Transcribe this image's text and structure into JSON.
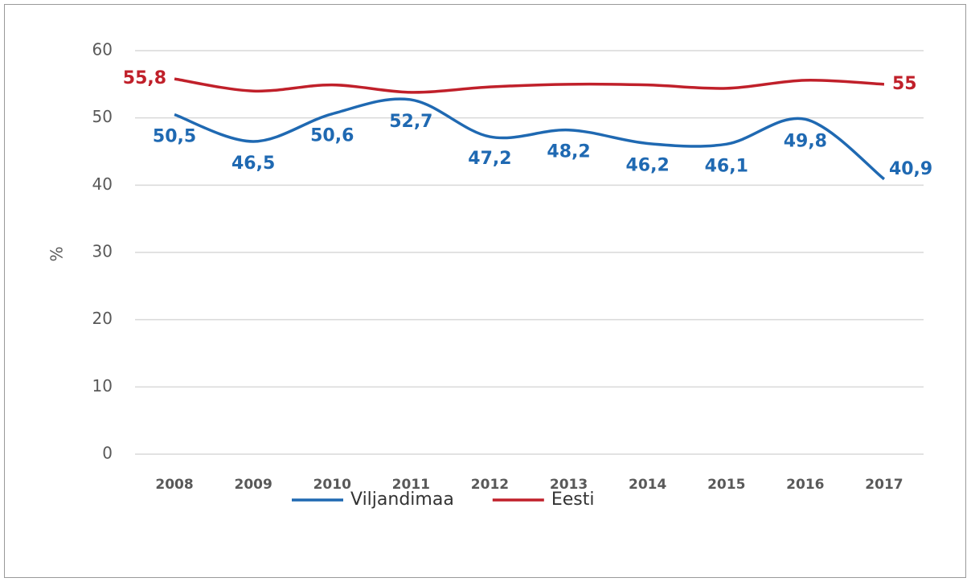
{
  "chart_data": {
    "type": "line",
    "y_label": "%",
    "categories": [
      "2008",
      "2009",
      "2010",
      "2011",
      "2012",
      "2013",
      "2014",
      "2015",
      "2016",
      "2017"
    ],
    "series": [
      {
        "name": "Viljandimaa",
        "color": "#1f69b2",
        "values": [
          50.5,
          46.5,
          50.6,
          52.7,
          47.2,
          48.2,
          46.2,
          46.1,
          49.8,
          40.9
        ],
        "value_labels": [
          "50,5",
          "46,5",
          "50,6",
          "52,7",
          "47,2",
          "48,2",
          "46,2",
          "46,1",
          "49,8",
          "40,9"
        ]
      },
      {
        "name": "Eesti",
        "color": "#c0202a",
        "values": [
          55.8,
          54.0,
          54.9,
          53.8,
          54.6,
          55.0,
          54.9,
          54.4,
          55.6,
          55
        ],
        "value_labels": [
          "55,8",
          null,
          null,
          null,
          null,
          null,
          null,
          null,
          null,
          "55"
        ]
      }
    ],
    "ylim": [
      0,
      60
    ],
    "yticks": [
      0,
      10,
      20,
      30,
      40,
      50,
      60
    ],
    "grid": true,
    "legend": "bottom",
    "smooth": true
  }
}
